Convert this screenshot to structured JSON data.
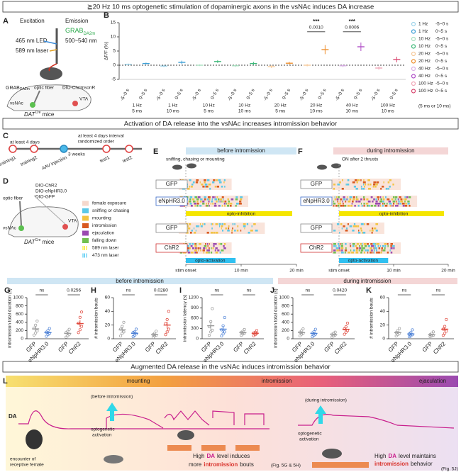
{
  "title": "≧20 Hz 10 ms optogenetic stimulation of dopaminergic axons in the vsNAc induces DA increase",
  "panel_a": {
    "letter": "A",
    "excitation": "Excitation",
    "emission": "Emission",
    "led": "465 nm LED",
    "laser": "589 nm laser",
    "sensor": "GRAB",
    "sensor_sub": "DA2m",
    "emission_range": "500~540 nm",
    "fiber": "optic fiber",
    "virus": "DIO-ChrimsonR",
    "region": "vsNAc",
    "vta": "VTA",
    "mouse": "DAT",
    "mouse_sup": "Cre",
    "mouse_suffix": "mice"
  },
  "chart_data": [
    {
      "type": "dot",
      "letter": "B",
      "ylabel": "ΔF/F (%)",
      "ylim": [
        -5,
        15
      ],
      "yticks": [
        -5,
        0,
        5,
        10,
        15
      ],
      "categories": [
        "-5~0 s",
        "0~5 s",
        "-5~0 s",
        "0~5 s",
        "-5~0 s",
        "0~5 s",
        "-5~0 s",
        "0~5 s",
        "-5~0 s",
        "0~5 s",
        "-5~0 s",
        "0~5 s",
        "-5~0 s",
        "0~5 s",
        "-5~0 s",
        "0~5 s"
      ],
      "groups": [
        {
          "freq": "1 Hz",
          "width": "5 ms"
        },
        {
          "freq": "1 Hz",
          "width": "10 ms"
        },
        {
          "freq": "10 Hz",
          "width": "5 ms"
        },
        {
          "freq": "10 Hz",
          "width": "10 ms"
        },
        {
          "freq": "20 Hz",
          "width": "5 ms"
        },
        {
          "freq": "20 Hz",
          "width": "10 ms"
        },
        {
          "freq": "40 Hz",
          "width": "10 ms"
        },
        {
          "freq": "100 Hz",
          "width": "10 ms"
        }
      ],
      "values": [
        0.3,
        0.6,
        -0.3,
        1.0,
        0,
        1.3,
        -0.2,
        0.6,
        -0.5,
        0.7,
        0,
        5.5,
        -0.2,
        6.5,
        -1.0,
        2.0
      ],
      "errors": [
        0.3,
        0.3,
        0.4,
        0.6,
        0.3,
        0.5,
        0.4,
        0.6,
        0.5,
        0.5,
        0.4,
        1.6,
        0.5,
        1.5,
        0.6,
        1.0
      ],
      "colors": [
        "#9fd4ea",
        "#3c9fd6",
        "#9fd4ea",
        "#3c9fd6",
        "#a8e0c0",
        "#3cb878",
        "#a8e0c0",
        "#3cb878",
        "#f6c99a",
        "#ee9030",
        "#f6c99a",
        "#ee9030",
        "#dab0e6",
        "#b050c8",
        "#f0a8b8",
        "#d84870"
      ],
      "annotations": [
        {
          "stars": "***",
          "p": "0.0010"
        },
        {
          "stars": "***",
          "p": "0.0006"
        }
      ],
      "legend": [
        {
          "label": "1 Hz",
          "window": "-5~0 s",
          "color": "#9fd4ea"
        },
        {
          "label": "1 Hz",
          "window": "0~5 s",
          "color": "#3c9fd6"
        },
        {
          "label": "10 Hz",
          "window": "-5~0 s",
          "color": "#a8e0c0"
        },
        {
          "label": "10 Hz",
          "window": "0~5 s",
          "color": "#3cb878"
        },
        {
          "label": "20 Hz",
          "window": "-5~0 s",
          "color": "#f6c99a"
        },
        {
          "label": "20 Hz",
          "window": "0~5 s",
          "color": "#ee9030"
        },
        {
          "label": "40 Hz",
          "window": "-5~0 s",
          "color": "#dab0e6"
        },
        {
          "label": "40 Hz",
          "window": "0~5 s",
          "color": "#b050c8"
        },
        {
          "label": "100 Hz",
          "window": "-5~0 s",
          "color": "#f0a8b8"
        },
        {
          "label": "100 Hz",
          "window": "0~5 s",
          "color": "#d84870"
        }
      ],
      "legend_note": "(5 ms or 10 ms)"
    },
    {
      "type": "dot",
      "letter": "G",
      "ylabel": "intromission total duration (s)",
      "ylim": [
        0,
        1000
      ],
      "yticks": [
        0,
        200,
        400,
        600,
        800,
        1000
      ],
      "categories": [
        "GFP",
        "eNpHR3.0",
        "GFP",
        "ChR2"
      ],
      "values": [
        240,
        150,
        130,
        370
      ],
      "errors": [
        60,
        30,
        40,
        80
      ],
      "points": [
        [
          90,
          140,
          190,
          260,
          330,
          430
        ],
        [
          60,
          100,
          130,
          160,
          200,
          250
        ],
        [
          40,
          70,
          110,
          150,
          180,
          230
        ],
        [
          150,
          220,
          300,
          380,
          520,
          650
        ]
      ],
      "colors": [
        "#9a9a9a",
        "#4a7fd6",
        "#9a9a9a",
        "#e0483c"
      ],
      "annotations": [
        {
          "stars": "ns"
        },
        {
          "stars": "*",
          "p": "0.0256"
        }
      ]
    },
    {
      "type": "dot",
      "letter": "H",
      "ylabel": "# intromission bouts",
      "ylim": [
        0,
        60
      ],
      "yticks": [
        0,
        20,
        40,
        60
      ],
      "categories": [
        "GFP",
        "eNpHR3.0",
        "GFP",
        "ChR2"
      ],
      "values": [
        13,
        8,
        6,
        20
      ],
      "errors": [
        4,
        2,
        2,
        5
      ],
      "points": [
        [
          4,
          8,
          10,
          14,
          18,
          24
        ],
        [
          3,
          5,
          7,
          9,
          10,
          14
        ],
        [
          2,
          4,
          5,
          6,
          8,
          11
        ],
        [
          6,
          10,
          14,
          22,
          28,
          40
        ]
      ],
      "colors": [
        "#9a9a9a",
        "#4a7fd6",
        "#9a9a9a",
        "#e0483c"
      ],
      "annotations": [
        {
          "stars": "ns"
        },
        {
          "stars": "*",
          "p": "0.0280"
        }
      ]
    },
    {
      "type": "dot",
      "letter": "I",
      "ylabel": "intromission latency (s)",
      "ylim": [
        0,
        1200
      ],
      "yticks": [
        0,
        300,
        600,
        900,
        1200
      ],
      "categories": [
        "GFP",
        "eNpHR3.0",
        "GFP",
        "ChR2"
      ],
      "values": [
        380,
        280,
        180,
        160
      ],
      "errors": [
        120,
        90,
        40,
        30
      ],
      "points": [
        [
          100,
          200,
          250,
          350,
          500,
          880
        ],
        [
          80,
          140,
          200,
          260,
          380,
          620
        ],
        [
          100,
          140,
          160,
          190,
          220,
          270
        ],
        [
          90,
          120,
          150,
          170,
          190,
          240
        ]
      ],
      "colors": [
        "#9a9a9a",
        "#4a7fd6",
        "#9a9a9a",
        "#e0483c"
      ],
      "annotations": [
        {
          "stars": "ns"
        },
        {
          "stars": "ns"
        }
      ]
    },
    {
      "type": "dot",
      "letter": "J",
      "ylabel": "intromission total duration (s)",
      "ylim": [
        0,
        1000
      ],
      "yticks": [
        0,
        200,
        400,
        600,
        800,
        1000
      ],
      "categories": [
        "GFP",
        "eNpHR3.0",
        "GFP",
        "ChR2"
      ],
      "values": [
        150,
        130,
        100,
        230
      ],
      "errors": [
        30,
        30,
        20,
        40
      ],
      "points": [
        [
          70,
          110,
          130,
          160,
          190,
          240
        ],
        [
          50,
          80,
          110,
          140,
          170,
          230
        ],
        [
          40,
          70,
          90,
          110,
          130,
          160
        ],
        [
          110,
          160,
          200,
          240,
          290,
          380
        ]
      ],
      "colors": [
        "#9a9a9a",
        "#4a7fd6",
        "#9a9a9a",
        "#e0483c"
      ],
      "annotations": [
        {
          "stars": "ns"
        },
        {
          "stars": "*",
          "p": "0.0420"
        }
      ]
    },
    {
      "type": "dot",
      "letter": "K",
      "ylabel": "# intromission bouts",
      "ylim": [
        0,
        60
      ],
      "yticks": [
        0,
        20,
        40,
        60
      ],
      "categories": [
        "GFP",
        "eNpHR3.0",
        "GFP",
        "ChR2"
      ],
      "values": [
        9,
        7,
        6,
        14
      ],
      "errors": [
        2,
        2,
        1,
        3
      ],
      "points": [
        [
          4,
          6,
          8,
          9,
          12,
          15
        ],
        [
          3,
          4,
          6,
          7,
          9,
          13
        ],
        [
          3,
          4,
          5,
          6,
          8,
          10
        ],
        [
          5,
          8,
          11,
          14,
          18,
          28
        ]
      ],
      "colors": [
        "#9a9a9a",
        "#4a7fd6",
        "#9a9a9a",
        "#e0483c"
      ],
      "annotations": [
        {
          "stars": "ns"
        },
        {
          "stars": "ns"
        }
      ]
    }
  ],
  "section2": "Activation of DA release into the vsNAc increases intromission behavior",
  "panel_c": {
    "letter": "C",
    "gap1": "at least 4 days",
    "gap2": "3 weeks",
    "interval": "at least 4 days interval",
    "order": "randomized order",
    "steps": [
      "training1",
      "training2",
      "AAV injection",
      "test1",
      "test2"
    ]
  },
  "panel_d": {
    "letter": "D",
    "viruses": [
      "DIO-ChR2",
      "DIO-eNpHR3.0",
      "DIO-GFP"
    ],
    "fiber": "optic fiber",
    "region": "vsNAc",
    "vta": "VTA",
    "mouse": "DAT",
    "mouse_sup": "Cre",
    "mouse_suffix": "mice",
    "legend": [
      {
        "name": "female exposure",
        "color": "#f6d8cc"
      },
      {
        "name": "sniffing or chasing",
        "color": "#5bc8e8"
      },
      {
        "name": "mounting",
        "color": "#f2c443"
      },
      {
        "name": "intromission",
        "color": "#d85a20"
      },
      {
        "name": "ejaculation",
        "color": "#9a4ab0"
      },
      {
        "name": "falling down",
        "color": "#70c050"
      },
      {
        "name": "589 nm laser",
        "color": "#f5e600"
      },
      {
        "name": "473 nm laser",
        "color": "#30c0f0"
      }
    ]
  },
  "panel_e": {
    "letter": "E",
    "header": "before intromission",
    "condition": "sniffing, chasing or mounting",
    "rows": [
      "GFP",
      "eNpHR3.0",
      "GFP",
      "ChR2"
    ],
    "inhibition": "opto-inhibition",
    "activation": "opto-activation",
    "onset": "stim onset",
    "mid": "10 min",
    "end": "20 min"
  },
  "panel_f": {
    "letter": "F",
    "header": "during intromission",
    "condition": "ON after 2 thrusts",
    "rows": [
      "GFP",
      "eNpHR3.0",
      "GFP",
      "ChR2"
    ],
    "inhibition": "opto-inhibition",
    "activation": "opto-activation",
    "onset": "stim onset",
    "mid": "10 min",
    "end": "20 min"
  },
  "subheaders": [
    "before intromission",
    "during intromission"
  ],
  "section3": "Augmented DA release in the vsNAc induces intromission behavior",
  "panel_l": {
    "letter": "L",
    "phases": [
      "mounting",
      "intromission",
      "ejaculation"
    ],
    "trace": "DA",
    "before": "(before intromission)",
    "during": "(during intromission)",
    "opto": [
      "optogenetic",
      "activation"
    ],
    "encounter": [
      "encounter of",
      "receptive female"
    ],
    "left_note": [
      [
        "High",
        "DA",
        "level induces"
      ],
      [
        "more",
        "intromission",
        "bouts"
      ]
    ],
    "left_ref": "(Fig. 5G & 5H)",
    "right_note": [
      [
        "High",
        "DA",
        "level maintains"
      ],
      [
        "intromission",
        "behavior"
      ]
    ],
    "right_ref": "(Fig. 5J)"
  }
}
